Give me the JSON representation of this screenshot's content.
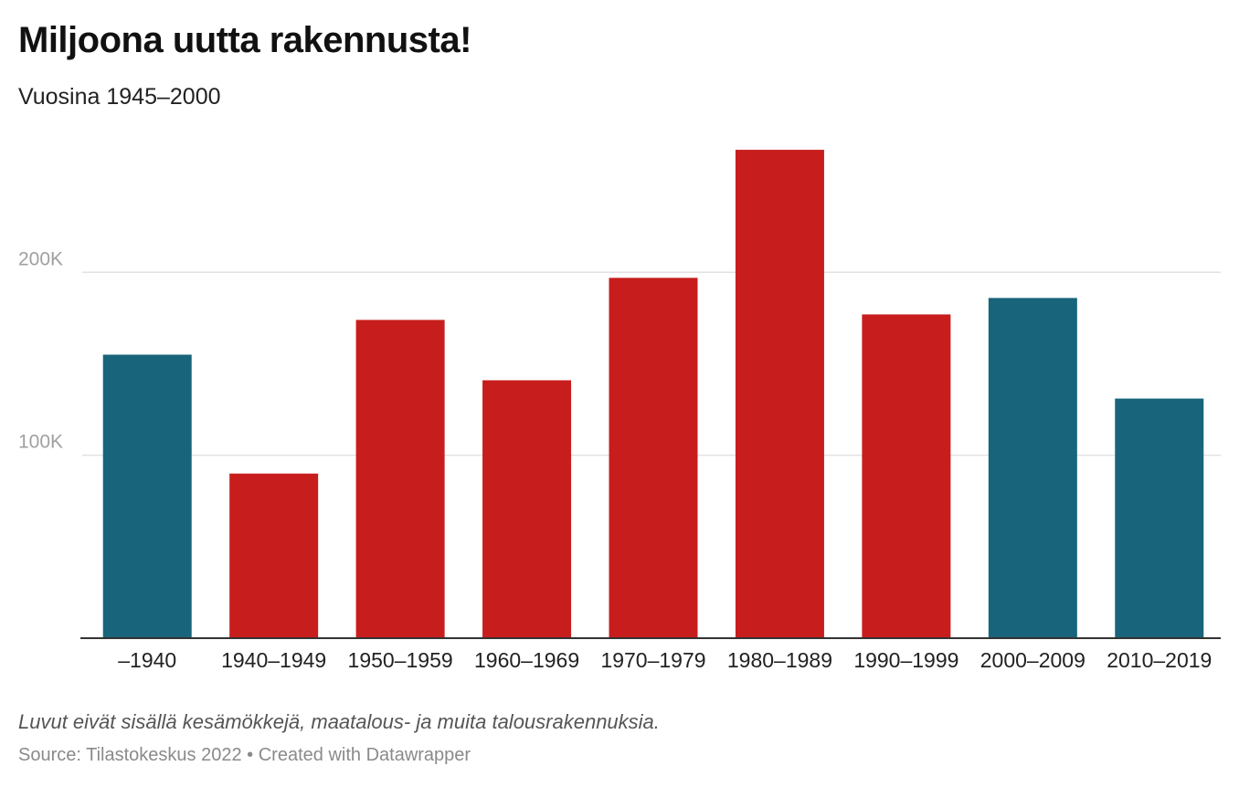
{
  "header": {
    "title": "Miljoona uutta rakennusta!",
    "subtitle": "Vuosina 1945–2000"
  },
  "chart_data": {
    "type": "bar",
    "categories": [
      "–1940",
      "1940–1949",
      "1950–1959",
      "1960–1969",
      "1970–1979",
      "1980–1989",
      "1990–1999",
      "2000–2009",
      "2010–2019"
    ],
    "values": [
      155000,
      90000,
      174000,
      141000,
      197000,
      267000,
      177000,
      186000,
      131000
    ],
    "highlighted": [
      false,
      true,
      true,
      true,
      true,
      true,
      true,
      false,
      false
    ],
    "colors": {
      "highlight": "#c71e1d",
      "base": "#18647b"
    },
    "yticks": [
      {
        "value": 100000,
        "label": "100K"
      },
      {
        "value": 200000,
        "label": "200K"
      }
    ],
    "ylim": [
      0,
      290000
    ],
    "grid": true,
    "legend": "none"
  },
  "footer": {
    "notes": "Luvut eivät sisällä kesämökkejä, maatalous- ja muita talousrakennuksia.",
    "source": "Source: Tilastokeskus 2022",
    "separator": "•",
    "credit": "Created with Datawrapper"
  }
}
